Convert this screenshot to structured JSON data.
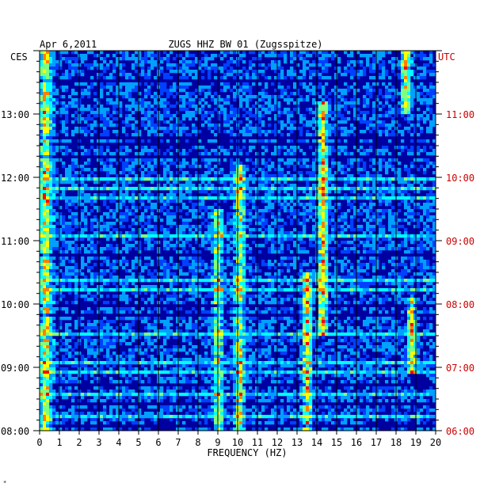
{
  "chart_data": {
    "type": "heatmap",
    "date": "Apr 6,2011",
    "station": "ZUGS HHZ BW 01 (Zugsspitze)",
    "left_tz": "CES",
    "right_tz": "UTC",
    "xlabel": "FREQUENCY (HZ)",
    "xlim": [
      0,
      20
    ],
    "x_ticks": [
      "0",
      "1",
      "2",
      "3",
      "4",
      "5",
      "6",
      "7",
      "8",
      "9",
      "10",
      "11",
      "12",
      "13",
      "14",
      "15",
      "16",
      "17",
      "18",
      "19",
      "20"
    ],
    "left_time_ticks": [
      {
        "label": "08:00",
        "hours_from_bottom": 0
      },
      {
        "label": "09:00",
        "hours_from_bottom": 1
      },
      {
        "label": "10:00",
        "hours_from_bottom": 2
      },
      {
        "label": "11:00",
        "hours_from_bottom": 3
      },
      {
        "label": "12:00",
        "hours_from_bottom": 4
      },
      {
        "label": "13:00",
        "hours_from_bottom": 5
      }
    ],
    "right_time_ticks": [
      {
        "label": "06:00",
        "hours_from_bottom": 0
      },
      {
        "label": "07:00",
        "hours_from_bottom": 1
      },
      {
        "label": "08:00",
        "hours_from_bottom": 2
      },
      {
        "label": "09:00",
        "hours_from_bottom": 3
      },
      {
        "label": "10:00",
        "hours_from_bottom": 4
      },
      {
        "label": "11:00",
        "hours_from_bottom": 5
      }
    ],
    "time_span_hours": 6,
    "colormap": [
      "#000080",
      "#0000d0",
      "#0040ff",
      "#00a0ff",
      "#00ffff",
      "#80ff80",
      "#ffff00",
      "#ff8000",
      "#ff0000"
    ],
    "hotspots": [
      {
        "freq": 0.3,
        "from_h": 0,
        "to_h": 6,
        "level": 0.55
      },
      {
        "freq": 9.0,
        "from_h": 0,
        "to_h": 3.5,
        "level": 0.5
      },
      {
        "freq": 10.1,
        "from_h": 0,
        "to_h": 4.2,
        "level": 0.55
      },
      {
        "freq": 13.5,
        "from_h": 0,
        "to_h": 2.5,
        "level": 0.6
      },
      {
        "freq": 14.3,
        "from_h": 1.5,
        "to_h": 5.2,
        "level": 0.65
      },
      {
        "freq": 18.8,
        "from_h": 0.9,
        "to_h": 2.1,
        "level": 0.55
      },
      {
        "freq": 18.5,
        "from_h": 5.0,
        "to_h": 6.0,
        "level": 0.6
      }
    ]
  },
  "footer_mark": "*"
}
